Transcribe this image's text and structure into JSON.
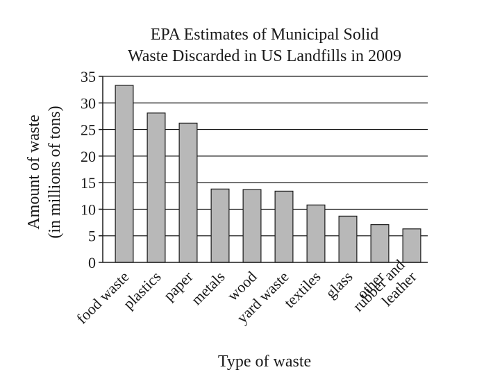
{
  "chart_data": {
    "type": "bar",
    "title": [
      "EPA Estimates of Municipal Solid",
      "Waste Discarded in US Landfills in 2009"
    ],
    "xlabel": "Type of waste",
    "ylabel": [
      "Amount of waste",
      "(in millions of tons)"
    ],
    "categories": [
      [
        "food waste"
      ],
      [
        "plastics"
      ],
      [
        "paper"
      ],
      [
        "metals"
      ],
      [
        "wood"
      ],
      [
        "yard waste"
      ],
      [
        "textiles"
      ],
      [
        "glass"
      ],
      [
        "other"
      ],
      [
        "rubber and",
        "leather"
      ]
    ],
    "values": [
      33.3,
      28.1,
      26.2,
      13.8,
      13.7,
      13.4,
      10.8,
      8.7,
      7.1,
      6.3
    ],
    "ylim": [
      0,
      35
    ],
    "yticks": [
      0,
      5,
      10,
      15,
      20,
      25,
      30,
      35
    ],
    "grid": true,
    "colors": {
      "bar_fill": "#b8b8b8",
      "bar_stroke": "#1a1a1a",
      "grid": "#1a1a1a",
      "text": "#1a1a1a"
    }
  }
}
